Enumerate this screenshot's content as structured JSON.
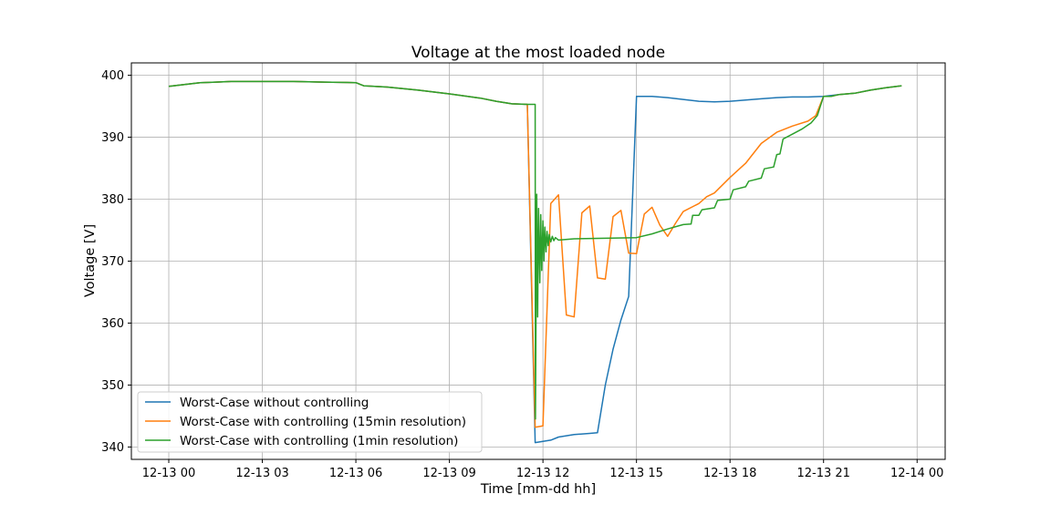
{
  "chart_data": {
    "type": "line",
    "title": "Voltage at the most loaded node",
    "xlabel": "Time [mm-dd hh]",
    "ylabel": "Voltage [V]",
    "x_unit": "hours since 12-13 00",
    "xlim": [
      -1.2,
      24.9
    ],
    "ylim": [
      338,
      402
    ],
    "grid": true,
    "legend_position": "lower-left",
    "x_ticks": [
      {
        "value": 0,
        "label": "12-13 00"
      },
      {
        "value": 3,
        "label": "12-13 03"
      },
      {
        "value": 6,
        "label": "12-13 06"
      },
      {
        "value": 9,
        "label": "12-13 09"
      },
      {
        "value": 12,
        "label": "12-13 12"
      },
      {
        "value": 15,
        "label": "12-13 15"
      },
      {
        "value": 18,
        "label": "12-13 18"
      },
      {
        "value": 21,
        "label": "12-13 21"
      },
      {
        "value": 24,
        "label": "12-14 00"
      }
    ],
    "y_ticks": [
      340,
      350,
      360,
      370,
      380,
      390,
      400
    ],
    "series": [
      {
        "name": "Worst-Case without controlling",
        "color": "#1f77b4",
        "points": [
          [
            0,
            398.2
          ],
          [
            0.5,
            398.5
          ],
          [
            1,
            398.8
          ],
          [
            1.5,
            398.9
          ],
          [
            2,
            399.0
          ],
          [
            3,
            399.0
          ],
          [
            4,
            399.0
          ],
          [
            5,
            398.9
          ],
          [
            6,
            398.8
          ],
          [
            6.25,
            398.3
          ],
          [
            7,
            398.1
          ],
          [
            8,
            397.6
          ],
          [
            9,
            397.0
          ],
          [
            10,
            396.3
          ],
          [
            10.5,
            395.8
          ],
          [
            11,
            395.4
          ],
          [
            11.5,
            395.3
          ],
          [
            11.75,
            340.7
          ],
          [
            12,
            340.9
          ],
          [
            12.25,
            341.1
          ],
          [
            12.5,
            341.6
          ],
          [
            13,
            342.0
          ],
          [
            13.5,
            342.2
          ],
          [
            13.75,
            342.3
          ],
          [
            14,
            350.0
          ],
          [
            14.25,
            355.8
          ],
          [
            14.5,
            360.5
          ],
          [
            14.75,
            364.3
          ],
          [
            15,
            396.6
          ],
          [
            15.5,
            396.6
          ],
          [
            16,
            396.4
          ],
          [
            16.5,
            396.1
          ],
          [
            17,
            395.8
          ],
          [
            17.5,
            395.7
          ],
          [
            18,
            395.8
          ],
          [
            18.5,
            396.0
          ],
          [
            19,
            396.2
          ],
          [
            19.5,
            396.4
          ],
          [
            20,
            396.5
          ],
          [
            20.5,
            396.5
          ],
          [
            21,
            396.6
          ],
          [
            21.5,
            396.9
          ],
          [
            22,
            397.1
          ],
          [
            22.5,
            397.6
          ],
          [
            23,
            398.0
          ],
          [
            23.5,
            398.3
          ]
        ]
      },
      {
        "name": "Worst-Case with controlling (15min resolution)",
        "color": "#ff7f0e",
        "points": [
          [
            0,
            398.2
          ],
          [
            0.5,
            398.5
          ],
          [
            1,
            398.8
          ],
          [
            1.5,
            398.9
          ],
          [
            2,
            399.0
          ],
          [
            3,
            399.0
          ],
          [
            4,
            399.0
          ],
          [
            5,
            398.9
          ],
          [
            6,
            398.8
          ],
          [
            6.25,
            398.3
          ],
          [
            7,
            398.1
          ],
          [
            8,
            397.6
          ],
          [
            9,
            397.0
          ],
          [
            10,
            396.3
          ],
          [
            10.5,
            395.8
          ],
          [
            11,
            395.4
          ],
          [
            11.5,
            395.3
          ],
          [
            11.75,
            343.2
          ],
          [
            12,
            343.4
          ],
          [
            12.25,
            379.3
          ],
          [
            12.5,
            380.7
          ],
          [
            12.75,
            361.3
          ],
          [
            13,
            361.0
          ],
          [
            13.25,
            377.8
          ],
          [
            13.5,
            378.9
          ],
          [
            13.75,
            367.3
          ],
          [
            14,
            367.1
          ],
          [
            14.25,
            377.2
          ],
          [
            14.5,
            378.2
          ],
          [
            14.75,
            371.3
          ],
          [
            15,
            371.2
          ],
          [
            15.25,
            377.6
          ],
          [
            15.5,
            378.7
          ],
          [
            15.75,
            375.8
          ],
          [
            16,
            374.0
          ],
          [
            16.25,
            376.1
          ],
          [
            16.5,
            378.0
          ],
          [
            17,
            379.3
          ],
          [
            17.25,
            380.4
          ],
          [
            17.5,
            381.0
          ],
          [
            18,
            383.5
          ],
          [
            18.5,
            385.8
          ],
          [
            19,
            389.0
          ],
          [
            19.5,
            390.8
          ],
          [
            20,
            391.8
          ],
          [
            20.5,
            392.6
          ],
          [
            20.75,
            393.5
          ],
          [
            21,
            396.6
          ],
          [
            21.25,
            396.6
          ],
          [
            21.5,
            396.9
          ],
          [
            22,
            397.1
          ],
          [
            22.5,
            397.6
          ],
          [
            23,
            398.0
          ],
          [
            23.5,
            398.3
          ]
        ]
      },
      {
        "name": "Worst-Case with controlling (1min resolution)",
        "color": "#2ca02c",
        "points": [
          [
            0,
            398.2
          ],
          [
            0.5,
            398.5
          ],
          [
            1,
            398.8
          ],
          [
            1.5,
            398.9
          ],
          [
            2,
            399.0
          ],
          [
            3,
            399.0
          ],
          [
            4,
            399.0
          ],
          [
            5,
            398.9
          ],
          [
            6,
            398.8
          ],
          [
            6.25,
            398.3
          ],
          [
            7,
            398.1
          ],
          [
            8,
            397.6
          ],
          [
            9,
            397.0
          ],
          [
            10,
            396.3
          ],
          [
            10.5,
            395.8
          ],
          [
            11,
            395.4
          ],
          [
            11.5,
            395.3
          ],
          [
            11.75,
            395.3
          ],
          [
            11.76,
            344.5
          ],
          [
            11.8,
            380.8
          ],
          [
            11.83,
            361.0
          ],
          [
            11.86,
            378.5
          ],
          [
            11.9,
            366.5
          ],
          [
            11.93,
            377.5
          ],
          [
            11.96,
            368.5
          ],
          [
            12,
            376.5
          ],
          [
            12.03,
            370.0
          ],
          [
            12.06,
            375.5
          ],
          [
            12.1,
            371.5
          ],
          [
            12.13,
            374.8
          ],
          [
            12.17,
            372.5
          ],
          [
            12.2,
            374.3
          ],
          [
            12.25,
            373.1
          ],
          [
            12.3,
            374.0
          ],
          [
            12.35,
            373.3
          ],
          [
            12.4,
            373.8
          ],
          [
            12.5,
            373.4
          ],
          [
            13,
            373.6
          ],
          [
            14,
            373.7
          ],
          [
            15,
            373.8
          ],
          [
            15.5,
            374.4
          ],
          [
            16,
            375.2
          ],
          [
            16.5,
            375.9
          ],
          [
            16.75,
            376.0
          ],
          [
            16.8,
            377.4
          ],
          [
            17,
            377.4
          ],
          [
            17.1,
            378.3
          ],
          [
            17.5,
            378.6
          ],
          [
            17.6,
            379.8
          ],
          [
            18,
            380.0
          ],
          [
            18.1,
            381.5
          ],
          [
            18.5,
            382.0
          ],
          [
            18.6,
            382.9
          ],
          [
            19,
            383.4
          ],
          [
            19.1,
            384.9
          ],
          [
            19.4,
            385.2
          ],
          [
            19.5,
            387.2
          ],
          [
            19.6,
            387.3
          ],
          [
            19.7,
            389.7
          ],
          [
            20,
            390.5
          ],
          [
            20.3,
            391.3
          ],
          [
            20.6,
            392.3
          ],
          [
            20.8,
            393.5
          ],
          [
            21,
            396.6
          ],
          [
            21.25,
            396.6
          ],
          [
            21.5,
            396.9
          ],
          [
            22,
            397.1
          ],
          [
            22.5,
            397.6
          ],
          [
            23,
            398.0
          ],
          [
            23.5,
            398.3
          ]
        ]
      }
    ]
  }
}
